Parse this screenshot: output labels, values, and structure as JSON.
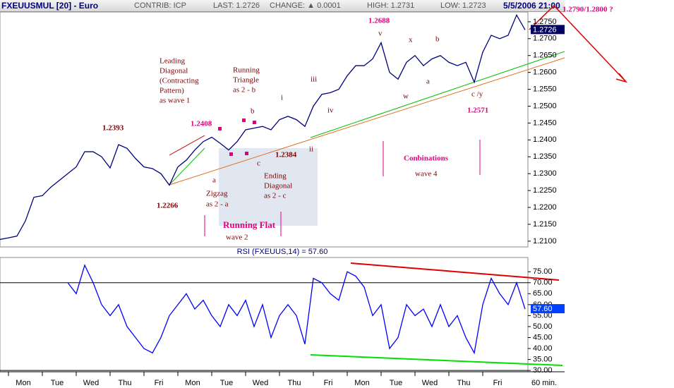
{
  "header": {
    "title": "FXEUUSMUL [20] - Euro",
    "contrib": "CONTRIB: ICP",
    "last": "LAST: 1.2726",
    "change": "CHANGE: ▲ 0.0001",
    "high": "HIGH: 1.2731",
    "low": "LOW: 1.2723",
    "time": "5/5/2006 21:00"
  },
  "chart_data": [
    {
      "type": "line",
      "color": "#000080",
      "categories": [
        null,
        null,
        null,
        "Mon",
        null,
        null,
        null,
        "Tue",
        null,
        null,
        null,
        "Wed",
        null,
        null,
        null,
        "Thu",
        null,
        null,
        null,
        "Fri",
        null,
        null,
        null,
        "Mon",
        null,
        null,
        null,
        "Tue",
        null,
        null,
        null,
        "Wed",
        null,
        null,
        null,
        "Thu",
        null,
        null,
        null,
        "Fri",
        null,
        null,
        null,
        "Mon",
        null,
        null,
        null,
        "Tue",
        null,
        null,
        null,
        "Wed",
        null,
        null,
        null,
        "Thu",
        null,
        null,
        null,
        "Fri",
        null,
        null,
        null
      ],
      "values": [
        1.2105,
        1.211,
        1.2115,
        1.216,
        1.223,
        1.2235,
        1.226,
        1.228,
        1.23,
        1.232,
        1.2365,
        1.2365,
        1.235,
        1.2317,
        1.2386,
        1.2375,
        1.2345,
        1.232,
        1.2315,
        1.23,
        1.2266,
        1.232,
        1.234,
        1.237,
        1.2395,
        1.2408,
        1.239,
        1.237,
        1.2395,
        1.243,
        1.2435,
        1.244,
        1.243,
        1.246,
        1.247,
        1.246,
        1.244,
        1.25,
        1.2535,
        1.254,
        1.255,
        1.259,
        1.262,
        1.262,
        1.264,
        1.2688,
        1.26,
        1.258,
        1.263,
        1.265,
        1.262,
        1.264,
        1.265,
        1.263,
        1.262,
        1.263,
        1.2571,
        1.266,
        1.271,
        1.27,
        1.271,
        1.277,
        1.2726
      ],
      "current_label": "1.2726",
      "ylim": [
        1.2083,
        1.2779
      ],
      "yticks": [
        {
          "value": 1.21,
          "label": "1.2100"
        },
        {
          "value": 1.215,
          "label": "1.2150"
        },
        {
          "value": 1.22,
          "label": "1.2200"
        },
        {
          "value": 1.225,
          "label": "1.2250"
        },
        {
          "value": 1.23,
          "label": "1.2300"
        },
        {
          "value": 1.235,
          "label": "1.2350"
        },
        {
          "value": 1.24,
          "label": "1.2400"
        },
        {
          "value": 1.245,
          "label": "1.2450"
        },
        {
          "value": 1.25,
          "label": "1.2500"
        },
        {
          "value": 1.255,
          "label": "1.2550"
        },
        {
          "value": 1.26,
          "label": "1.2600"
        },
        {
          "value": 1.265,
          "label": "1.2650"
        },
        {
          "value": 1.27,
          "label": "1.2700"
        },
        {
          "value": 1.275,
          "label": "1.2750"
        }
      ],
      "annotations": [
        "Leading",
        "Diagonal",
        "(Contracting",
        "Pattern)",
        "as wave 1",
        "Running",
        "Triangle",
        "as 2 - b",
        "1.2393",
        "1.2266",
        "a",
        "Zigzag",
        "as 2 - a",
        "b",
        "c",
        "i",
        "ii",
        "iii",
        "iv",
        "1.2384",
        "Ending",
        "Diagonal",
        "as 2 - c",
        "v",
        "x",
        "b",
        "w",
        "a",
        "c /y",
        "wave 2",
        "wave 4",
        "1.2408",
        "1.2688",
        "1.2571",
        "Running Flat",
        "Conbinations",
        "1.2790/1.2800 ?"
      ]
    },
    {
      "type": "line",
      "color": "#0000ff",
      "title": "RSI (FXEUUS,14) = 57.60",
      "values": [
        null,
        null,
        null,
        null,
        null,
        null,
        null,
        null,
        70,
        65,
        78,
        70,
        60,
        55,
        60,
        50,
        45,
        40,
        38,
        45,
        55,
        60,
        65,
        58,
        62,
        55,
        50,
        60,
        55,
        62,
        50,
        60,
        45,
        55,
        60,
        55,
        42,
        72,
        70,
        65,
        62,
        75,
        73,
        68,
        55,
        60,
        40,
        45,
        60,
        55,
        58,
        50,
        60,
        50,
        55,
        45,
        38,
        60,
        72,
        65,
        60,
        70,
        58
      ],
      "current_label": "57.60",
      "reference_lines": [
        70,
        30
      ],
      "ylim": [
        29.4,
        81.5
      ],
      "yticks": [
        {
          "value": 30,
          "label": "30.00"
        },
        {
          "value": 35,
          "label": "35.00"
        },
        {
          "value": 40,
          "label": "40.00"
        },
        {
          "value": 45,
          "label": "45.00"
        },
        {
          "value": 50,
          "label": "50.00"
        },
        {
          "value": 55,
          "label": "55.00"
        },
        {
          "value": 60,
          "label": "60.00"
        },
        {
          "value": 65,
          "label": "65.00"
        },
        {
          "value": 70,
          "label": "70.00"
        },
        {
          "value": 75,
          "label": "75.00"
        }
      ],
      "x_label": "60 min."
    }
  ]
}
